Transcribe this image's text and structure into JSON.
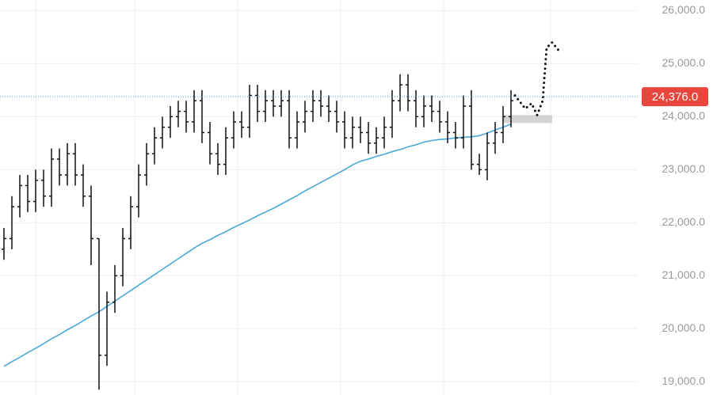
{
  "chart_data": {
    "type": "ohlc",
    "xlim": [
      -0.5,
      80
    ],
    "ylim": [
      18750,
      26200
    ],
    "yticks": [
      {
        "value": 19000,
        "label": "19,000.0"
      },
      {
        "value": 20000,
        "label": "20,000.0"
      },
      {
        "value": 21000,
        "label": "21,000.0"
      },
      {
        "value": 22000,
        "label": "22,000.0"
      },
      {
        "value": 23000,
        "label": "23,000.0"
      },
      {
        "value": 24000,
        "label": "24,000.0"
      },
      {
        "value": 25000,
        "label": "25,000.0"
      },
      {
        "value": 26000,
        "label": "26,000.0"
      }
    ],
    "grid": true,
    "color": "#111111",
    "open": [
      21500,
      21700,
      22300,
      22700,
      22400,
      22800,
      22500,
      23200,
      22900,
      23300,
      22900,
      22500,
      21700,
      19500,
      20500,
      21000,
      21700,
      22300,
      22900,
      23300,
      23600,
      23800,
      24000,
      24100,
      23900,
      24300,
      23700,
      23300,
      23100,
      23600,
      23900,
      23800,
      24400,
      24100,
      24300,
      24200,
      24300,
      23600,
      23900,
      24100,
      24300,
      24200,
      24100,
      23900,
      23600,
      23800,
      23700,
      23500,
      23600,
      23800,
      24300,
      24600,
      24300,
      24000,
      24200,
      24100,
      23900,
      23700,
      23600,
      24200,
      23100,
      23000,
      23500,
      23700,
      24000
    ],
    "high": [
      21900,
      22500,
      22900,
      22900,
      23000,
      23000,
      23400,
      23400,
      23500,
      23500,
      23100,
      22700,
      21700,
      20700,
      21200,
      21900,
      22500,
      23100,
      23500,
      23800,
      24000,
      24200,
      24300,
      24300,
      24500,
      24500,
      23900,
      23500,
      23800,
      24100,
      24100,
      24600,
      24600,
      24500,
      24500,
      24500,
      24500,
      24100,
      24300,
      24500,
      24500,
      24400,
      24300,
      24100,
      24000,
      24000,
      23900,
      23800,
      24000,
      24500,
      24800,
      24800,
      24500,
      24400,
      24400,
      24300,
      24100,
      23900,
      24400,
      24500,
      23300,
      23700,
      23900,
      24200,
      24500
    ],
    "low": [
      21300,
      21500,
      22100,
      22200,
      22200,
      22300,
      22300,
      22700,
      22700,
      22700,
      22300,
      21200,
      18850,
      19300,
      20300,
      20800,
      21500,
      22100,
      22700,
      23100,
      23400,
      23600,
      23800,
      23700,
      23700,
      23500,
      23100,
      22900,
      22900,
      23400,
      23600,
      23600,
      23900,
      23900,
      24000,
      24000,
      23400,
      23400,
      23700,
      23900,
      24000,
      23900,
      23700,
      23400,
      23400,
      23500,
      23300,
      23300,
      23400,
      23600,
      24100,
      24100,
      23800,
      23800,
      23900,
      23700,
      23500,
      23400,
      23400,
      23000,
      22900,
      22800,
      23300,
      23500,
      23800
    ],
    "close": [
      21700,
      22300,
      22700,
      22400,
      22800,
      22500,
      23200,
      22900,
      23300,
      22900,
      22500,
      21700,
      19500,
      20500,
      21000,
      21700,
      22300,
      22900,
      23300,
      23600,
      23800,
      24000,
      24100,
      23900,
      24300,
      23700,
      23300,
      23100,
      23600,
      23900,
      23800,
      24400,
      24100,
      24300,
      24200,
      24300,
      23600,
      23900,
      24100,
      24300,
      24200,
      24100,
      23900,
      23600,
      23800,
      23700,
      23500,
      23600,
      23800,
      24300,
      24600,
      24300,
      24000,
      24200,
      24100,
      23900,
      23700,
      23600,
      24200,
      23100,
      23000,
      23500,
      23700,
      24000,
      24300
    ],
    "moving_average": {
      "color": "#4aa8d8",
      "values": [
        19290,
        19380,
        19460,
        19550,
        19630,
        19720,
        19810,
        19890,
        19980,
        20060,
        20150,
        20240,
        20320,
        20420,
        20520,
        20620,
        20720,
        20820,
        20920,
        21020,
        21120,
        21220,
        21320,
        21420,
        21520,
        21610,
        21680,
        21760,
        21830,
        21910,
        21980,
        22050,
        22130,
        22200,
        22270,
        22350,
        22430,
        22510,
        22600,
        22680,
        22760,
        22840,
        22920,
        23000,
        23090,
        23160,
        23200,
        23250,
        23290,
        23340,
        23380,
        23430,
        23470,
        23520,
        23550,
        23570,
        23580,
        23600,
        23610,
        23620,
        23640,
        23690,
        23750,
        23800,
        23860
      ]
    },
    "projection": {
      "color": "#111111",
      "x": [
        64.5,
        65.8,
        66.6,
        67.3,
        68,
        68.5,
        69.2,
        70.3
      ],
      "values": [
        24400,
        24150,
        24250,
        24030,
        24300,
        25300,
        25400,
        25200
      ]
    },
    "zone": {
      "color": "#c8c8c8",
      "x": [
        63,
        69.2
      ],
      "y": [
        23880,
        24030
      ]
    },
    "last_price": {
      "value": 24376,
      "label": "24,376.0",
      "color": "#e8453c",
      "line_color": "#2aa7d6"
    }
  }
}
